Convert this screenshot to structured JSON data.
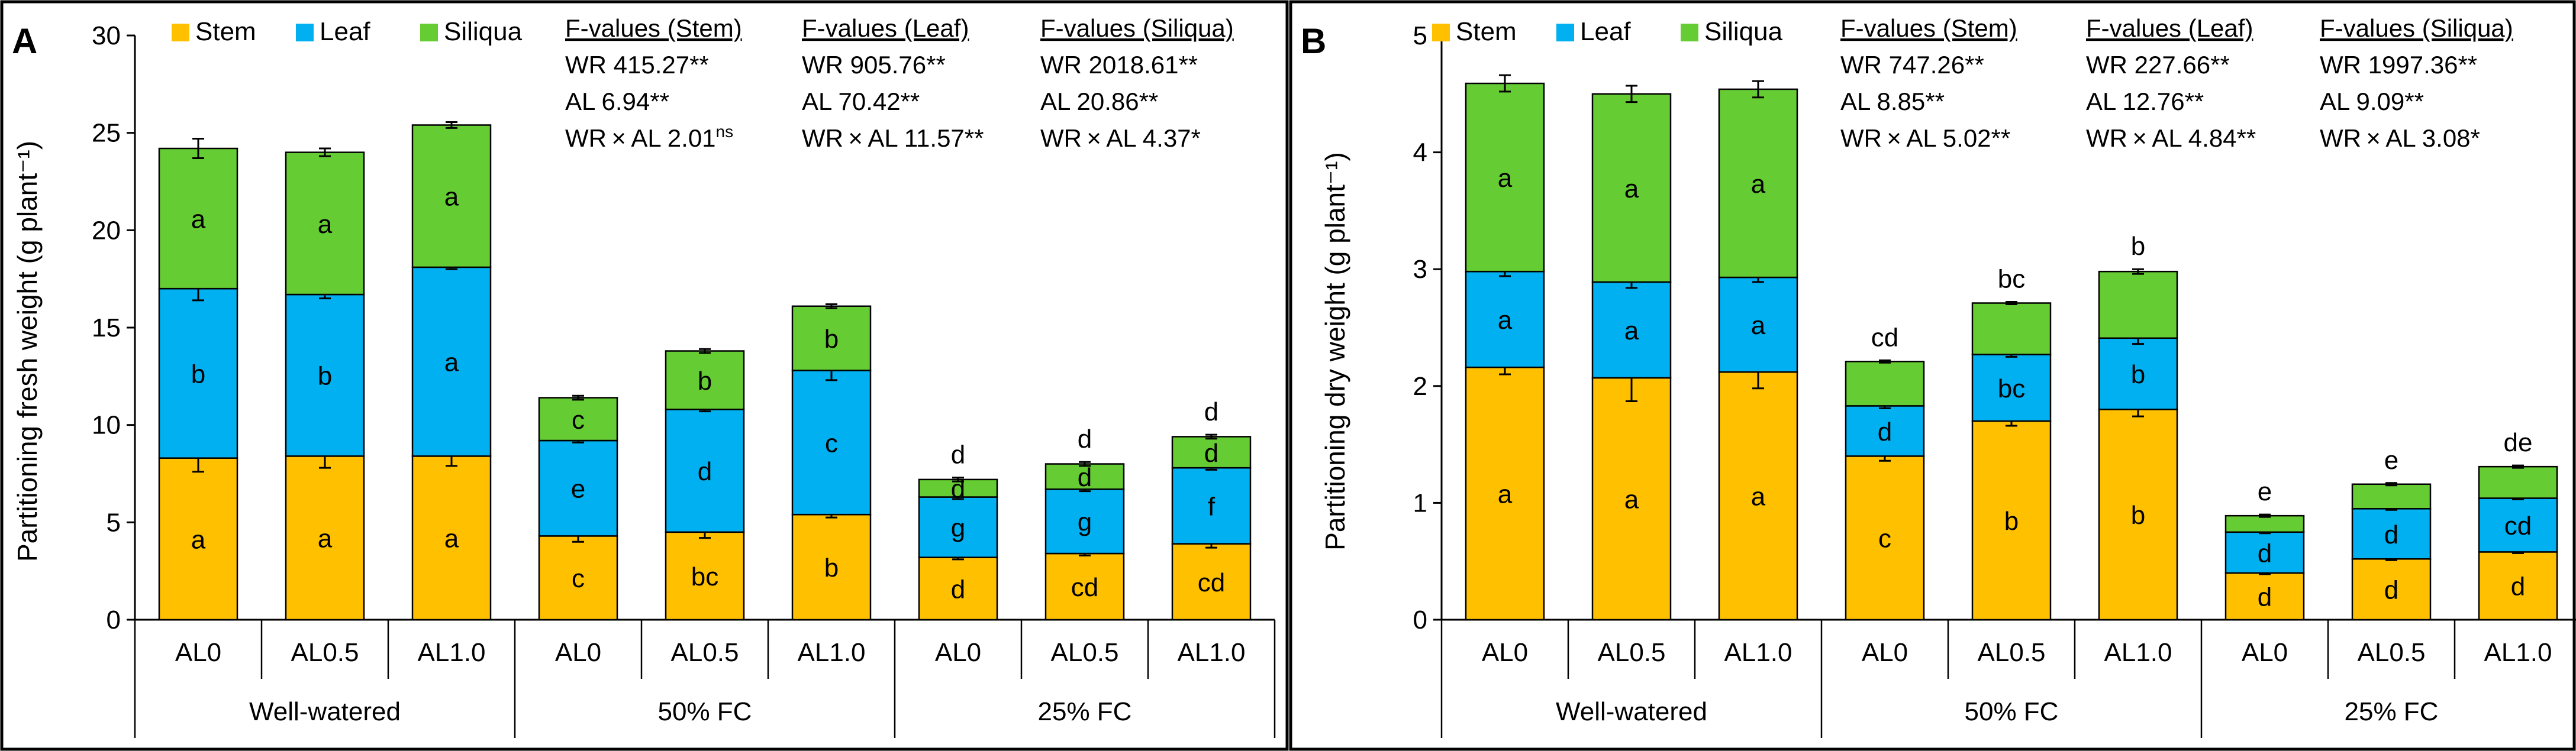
{
  "colors": {
    "stem": "#FFC000",
    "leaf": "#00B0F0",
    "siliqua": "#66CC33",
    "outline": "#000000"
  },
  "chart_data": [
    {
      "panel_label": "A",
      "type": "bar",
      "stacked": true,
      "ylabel": "Partitioning fresh weight (g plant⁻¹)",
      "ylim": [
        0,
        30
      ],
      "ystep": 5,
      "yticks": [
        "0",
        "5",
        "10",
        "15",
        "20",
        "25",
        "30"
      ],
      "categories": [
        "AL0",
        "AL0.5",
        "AL1.0",
        "AL0",
        "AL0.5",
        "AL1.0",
        "AL0",
        "AL0.5",
        "AL1.0"
      ],
      "groups": [
        "Well-watered",
        "50% FC",
        "25% FC"
      ],
      "legend": [
        "Stem",
        "Leaf",
        "Siliqua"
      ],
      "series": [
        {
          "name": "Stem",
          "color": "#FFC000",
          "values": [
            8.3,
            8.4,
            8.4,
            4.3,
            4.5,
            5.4,
            3.2,
            3.4,
            3.9
          ],
          "errors": [
            0.7,
            0.6,
            0.5,
            0.3,
            0.3,
            0.15,
            0.1,
            0.1,
            0.2
          ],
          "letters": [
            "a",
            "a",
            "a",
            "c",
            "bc",
            "b",
            "d",
            "cd",
            "cd"
          ]
        },
        {
          "name": "Leaf",
          "color": "#00B0F0",
          "values": [
            8.7,
            8.3,
            9.7,
            4.9,
            6.3,
            7.4,
            3.1,
            3.3,
            3.9
          ],
          "errors": [
            0.6,
            0.2,
            0.1,
            0.1,
            0.1,
            0.5,
            0.1,
            0.1,
            0.1
          ],
          "letters": [
            "b",
            "b",
            "a",
            "e",
            "d",
            "c",
            "g",
            "g",
            "f"
          ]
        },
        {
          "name": "Siliqua",
          "color": "#66CC33",
          "values": [
            7.2,
            7.3,
            7.3,
            2.2,
            3.0,
            3.3,
            0.9,
            1.3,
            1.6
          ],
          "errors": [
            0.5,
            0.2,
            0.15,
            0.1,
            0.1,
            0.1,
            0.1,
            0.1,
            0.1
          ],
          "letters": [
            "a",
            "a",
            "a",
            "c",
            "b",
            "b",
            "d",
            "d",
            "d"
          ]
        }
      ],
      "letters_on_top": [
        null,
        null,
        null,
        null,
        null,
        null,
        "d",
        "d",
        "d"
      ],
      "anova": [
        {
          "header": "F-values (Stem)",
          "lines": [
            "WR 415.27**",
            "AL 6.94**",
            "WR × AL 2.01"
          ],
          "sup": "ns"
        },
        {
          "header": "F-values (Leaf)",
          "lines": [
            "WR 905.76**",
            "AL 70.42**",
            "WR × AL 11.57**"
          ],
          "sup": ""
        },
        {
          "header": "F-values (Siliqua)",
          "lines": [
            "WR 2018.61**",
            "AL 20.86**",
            "WR × AL 4.37*"
          ],
          "sup": ""
        }
      ]
    },
    {
      "panel_label": "B",
      "type": "bar",
      "stacked": true,
      "ylabel": "Partitioning dry weight (g plant⁻¹)",
      "ylim": [
        0,
        5
      ],
      "ystep": 1,
      "yticks": [
        "0",
        "1",
        "2",
        "3",
        "4",
        "5"
      ],
      "categories": [
        "AL0",
        "AL0.5",
        "AL1.0",
        "AL0",
        "AL0.5",
        "AL1.0",
        "AL0",
        "AL0.5",
        "AL1.0"
      ],
      "groups": [
        "Well-watered",
        "50% FC",
        "25% FC"
      ],
      "legend": [
        "Stem",
        "Leaf",
        "Siliqua"
      ],
      "series": [
        {
          "name": "Stem",
          "color": "#FFC000",
          "values": [
            2.16,
            2.07,
            2.12,
            1.4,
            1.7,
            1.8,
            0.4,
            0.52,
            0.58
          ],
          "errors": [
            0.06,
            0.2,
            0.14,
            0.04,
            0.04,
            0.06,
            0.01,
            0.01,
            0.01
          ],
          "letters": [
            "a",
            "a",
            "a",
            "c",
            "b",
            "b",
            "d",
            "d",
            "d"
          ]
        },
        {
          "name": "Leaf",
          "color": "#00B0F0",
          "values": [
            0.82,
            0.82,
            0.81,
            0.43,
            0.57,
            0.61,
            0.35,
            0.43,
            0.46
          ],
          "errors": [
            0.04,
            0.05,
            0.04,
            0.02,
            0.02,
            0.05,
            0.01,
            0.01,
            0.01
          ],
          "letters": [
            "a",
            "a",
            "a",
            "d",
            "bc",
            "b",
            "d",
            "d",
            "cd"
          ]
        },
        {
          "name": "Siliqua",
          "color": "#66CC33",
          "values": [
            1.61,
            1.61,
            1.61,
            0.38,
            0.44,
            0.57,
            0.14,
            0.21,
            0.27
          ],
          "errors": [
            0.07,
            0.07,
            0.07,
            0.01,
            0.01,
            0.02,
            0.01,
            0.01,
            0.01
          ],
          "letters": [
            "a",
            "a",
            "a",
            null,
            null,
            null,
            null,
            null,
            null
          ]
        }
      ],
      "letters_on_top": [
        null,
        null,
        null,
        "cd",
        "bc",
        "b",
        "e",
        "e",
        "de"
      ],
      "anova": [
        {
          "header": "F-values (Stem)",
          "lines": [
            "WR 747.26**",
            "AL 8.85**",
            "WR × AL 5.02**"
          ],
          "sup": ""
        },
        {
          "header": "F-values (Leaf)",
          "lines": [
            "WR 227.66**",
            "AL 12.76**",
            "WR × AL 4.84**"
          ],
          "sup": ""
        },
        {
          "header": "F-values (Siliqua)",
          "lines": [
            "WR 1997.36**",
            "AL 9.09**",
            "WR × AL 3.08*"
          ],
          "sup": ""
        }
      ]
    }
  ]
}
